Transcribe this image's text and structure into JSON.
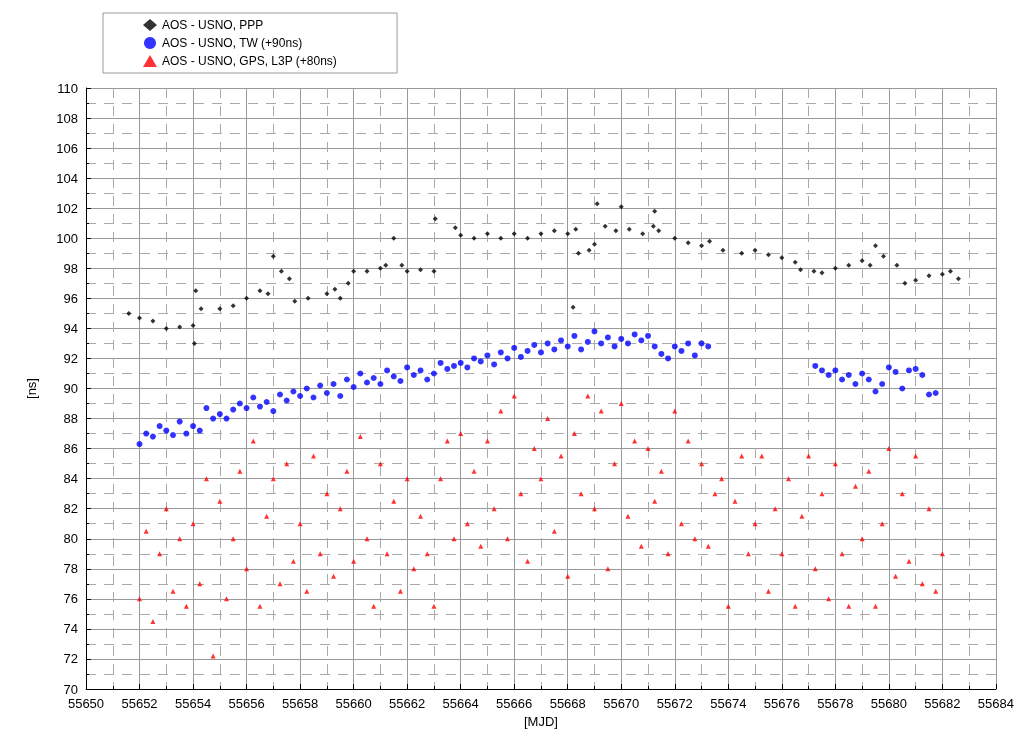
{
  "chart_data": {
    "type": "scatter",
    "xlabel": "[MJD]",
    "ylabel": "[ns]",
    "xlim": [
      55650,
      55684
    ],
    "ylim": [
      70,
      110
    ],
    "xticks": [
      55650,
      55652,
      55654,
      55656,
      55658,
      55660,
      55662,
      55664,
      55666,
      55668,
      55670,
      55672,
      55674,
      55676,
      55678,
      55680,
      55682,
      55684
    ],
    "yticks": [
      70,
      72,
      74,
      76,
      78,
      80,
      82,
      84,
      86,
      88,
      90,
      92,
      94,
      96,
      98,
      100,
      102,
      104,
      106,
      108,
      110
    ],
    "grid": true,
    "legend": "top left",
    "series": [
      {
        "name": "AOS - USNO, PPP",
        "color": "#000000",
        "marker": "diamond",
        "x": [
          55651.6,
          55652,
          55652.5,
          55653,
          55653.5,
          55654,
          55654.05,
          55654.1,
          55654.3,
          55655,
          55655.5,
          55656,
          55656.5,
          55656.8,
          55657,
          55657.3,
          55657.6,
          55657.8,
          55658.3,
          55659,
          55659.3,
          55659.5,
          55659.8,
          55660,
          55660.5,
          55661,
          55661.2,
          55661.5,
          55661.8,
          55662,
          55662.5,
          55663,
          55663.05,
          55663.8,
          55664,
          55664.5,
          55665,
          55665.5,
          55666,
          55666.5,
          55667,
          55667.5,
          55668,
          55668.3,
          55668.2,
          55668.4,
          55668.8,
          55669,
          55669.1,
          55669.4,
          55669.8,
          55670,
          55670.3,
          55670.8,
          55671.2,
          55671.25,
          55671.4,
          55672,
          55672.5,
          55673,
          55673.3,
          55673.8,
          55674.5,
          55675,
          55675.5,
          55676,
          55676.5,
          55676.7,
          55677.2,
          55677.5,
          55678,
          55678.5,
          55679,
          55679.3,
          55679.5,
          55679.8,
          55680.3,
          55680.6,
          55681,
          55681.5,
          55682,
          55682.3,
          55682.6
        ],
        "values": [
          95.0,
          94.7,
          94.5,
          94.0,
          94.1,
          94.2,
          93.0,
          96.5,
          95.3,
          95.3,
          95.5,
          96.0,
          96.5,
          96.3,
          98.8,
          97.8,
          97.3,
          95.8,
          96.0,
          96.3,
          96.6,
          96.0,
          97.0,
          97.8,
          97.8,
          98.0,
          98.2,
          100.0,
          98.2,
          97.8,
          97.9,
          97.8,
          101.3,
          100.7,
          100.2,
          100.0,
          100.3,
          100.0,
          100.3,
          100.0,
          100.3,
          100.5,
          100.3,
          100.6,
          95.4,
          99.0,
          99.2,
          99.6,
          102.3,
          100.8,
          100.5,
          102.1,
          100.6,
          100.3,
          100.8,
          101.8,
          100.5,
          100.0,
          99.7,
          99.5,
          99.8,
          99.2,
          99.0,
          99.2,
          98.9,
          98.7,
          98.4,
          97.9,
          97.8,
          97.7,
          98.0,
          98.2,
          98.5,
          98.2,
          99.5,
          98.8,
          98.2,
          97.0,
          97.2,
          97.5,
          97.6,
          97.8,
          97.3
        ]
      },
      {
        "name": "AOS - USNO, TW (+90ns)",
        "color": "#0000ff",
        "marker": "circle",
        "x": [
          55652,
          55652.25,
          55652.5,
          55652.75,
          55653,
          55653.25,
          55653.5,
          55653.75,
          55654,
          55654.25,
          55654.5,
          55654.75,
          55655,
          55655.25,
          55655.5,
          55655.75,
          55656,
          55656.25,
          55656.5,
          55656.75,
          55657,
          55657.25,
          55657.5,
          55657.75,
          55658,
          55658.25,
          55658.5,
          55658.75,
          55659,
          55659.25,
          55659.5,
          55659.75,
          55660,
          55660.25,
          55660.5,
          55660.75,
          55661,
          55661.25,
          55661.5,
          55661.75,
          55662,
          55662.25,
          55662.5,
          55662.75,
          55663,
          55663.25,
          55663.5,
          55663.75,
          55664,
          55664.25,
          55664.5,
          55664.75,
          55665,
          55665.25,
          55665.5,
          55665.75,
          55666,
          55666.25,
          55666.5,
          55666.75,
          55667,
          55667.25,
          55667.5,
          55667.75,
          55668,
          55668.25,
          55668.5,
          55668.75,
          55669,
          55669.25,
          55669.5,
          55669.75,
          55670,
          55670.25,
          55670.5,
          55670.75,
          55671,
          55671.25,
          55671.5,
          55671.75,
          55672,
          55672.25,
          55672.5,
          55672.75,
          55673,
          55673.25,
          55677.25,
          55677.5,
          55677.75,
          55678,
          55678.25,
          55678.5,
          55678.75,
          55679,
          55679.25,
          55679.5,
          55679.75,
          55680,
          55680.25,
          55680.5,
          55680.75,
          55681,
          55681.25,
          55681.5,
          55681.75
        ],
        "values": [
          86.3,
          87,
          86.8,
          87.5,
          87.2,
          86.9,
          87.8,
          87,
          87.5,
          87.2,
          88.7,
          88,
          88.3,
          88,
          88.6,
          89,
          88.7,
          89.4,
          88.8,
          89.1,
          88.5,
          89.6,
          89.2,
          89.8,
          89.5,
          90,
          89.4,
          90.2,
          89.7,
          90.3,
          89.5,
          90.6,
          90.1,
          91,
          90.4,
          90.7,
          90.3,
          91.2,
          90.8,
          90.5,
          91.4,
          90.9,
          91.2,
          90.6,
          91,
          91.7,
          91.3,
          91.5,
          91.7,
          91.4,
          92,
          91.8,
          92.2,
          91.6,
          92.4,
          92,
          92.7,
          92.1,
          92.5,
          92.9,
          92.4,
          93,
          92.6,
          93.2,
          92.8,
          93.5,
          92.6,
          93.1,
          93.8,
          93,
          93.4,
          92.8,
          93.3,
          93,
          93.6,
          93.2,
          93.5,
          92.8,
          92.3,
          92,
          92.8,
          92.5,
          93,
          92.2,
          93,
          92.8,
          91.5,
          91.2,
          90.9,
          91.2,
          90.6,
          90.9,
          90.3,
          91,
          90.6,
          89.8,
          90.3,
          91.4,
          91.1,
          90,
          91.2,
          91.3,
          90.9,
          89.6,
          89.7
        ]
      },
      {
        "name": "AOS - USNO, GPS, L3P (+80ns)",
        "color": "#ff0000",
        "marker": "triangle",
        "x": [
          55652,
          55652.25,
          55652.5,
          55652.75,
          55653,
          55653.25,
          55653.5,
          55653.75,
          55654,
          55654.25,
          55654.5,
          55654.75,
          55655,
          55655.25,
          55655.5,
          55655.75,
          55656,
          55656.25,
          55656.5,
          55656.75,
          55657,
          55657.25,
          55657.5,
          55657.75,
          55658,
          55658.25,
          55658.5,
          55658.75,
          55659,
          55659.25,
          55659.5,
          55659.75,
          55660,
          55660.25,
          55660.5,
          55660.75,
          55661,
          55661.25,
          55661.5,
          55661.75,
          55662,
          55662.25,
          55662.5,
          55662.75,
          55663,
          55663.25,
          55663.5,
          55663.75,
          55664,
          55664.25,
          55664.5,
          55664.75,
          55665,
          55665.25,
          55665.5,
          55665.75,
          55666,
          55666.25,
          55666.5,
          55666.75,
          55667,
          55667.25,
          55667.5,
          55667.75,
          55668,
          55668.25,
          55668.5,
          55668.75,
          55669,
          55669.25,
          55669.5,
          55669.75,
          55670,
          55670.25,
          55670.5,
          55670.75,
          55671,
          55671.25,
          55671.5,
          55671.75,
          55672,
          55672.25,
          55672.5,
          55672.75,
          55673,
          55673.25,
          55673.5,
          55673.75,
          55674,
          55674.25,
          55674.5,
          55674.75,
          55675,
          55675.25,
          55675.5,
          55675.75,
          55676,
          55676.25,
          55676.5,
          55676.75,
          55677,
          55677.25,
          55677.5,
          55677.75,
          55678,
          55678.25,
          55678.5,
          55678.75,
          55679,
          55679.25,
          55679.5,
          55679.75,
          55680,
          55680.25,
          55680.5,
          55680.75,
          55681,
          55681.25,
          55681.5,
          55681.75,
          55682
        ],
        "values": [
          76,
          80.5,
          74.5,
          79,
          82,
          76.5,
          80,
          75.5,
          81,
          77,
          84,
          72.2,
          82.5,
          76,
          80,
          84.5,
          78,
          86.5,
          75.5,
          81.5,
          84,
          77,
          85,
          78.5,
          81,
          76.5,
          85.5,
          79,
          83,
          77.5,
          82,
          84.5,
          78.5,
          86.8,
          80,
          75.5,
          85,
          79,
          82.5,
          76.5,
          84,
          78,
          81.5,
          79,
          75.5,
          84,
          86.5,
          80,
          87,
          81,
          84.5,
          79.5,
          86.5,
          82,
          88.5,
          80,
          89.5,
          83,
          78.5,
          86,
          84,
          88,
          80.5,
          85.5,
          77.5,
          87,
          83,
          89.5,
          82,
          88.5,
          78,
          85,
          89,
          81.5,
          86.5,
          79.5,
          86,
          82.5,
          84.5,
          79,
          88.5,
          81,
          86.5,
          80,
          85,
          79.5,
          83,
          84,
          75.5,
          82.5,
          85.5,
          79,
          81,
          85.5,
          76.5,
          82,
          79,
          84,
          75.5,
          81.5,
          85.5,
          78,
          83,
          76,
          85,
          79,
          75.5,
          83.5,
          80,
          84.5,
          75.5,
          81,
          86,
          77.5,
          83,
          78.5,
          85.5,
          77,
          82,
          76.5,
          79
        ]
      }
    ]
  }
}
